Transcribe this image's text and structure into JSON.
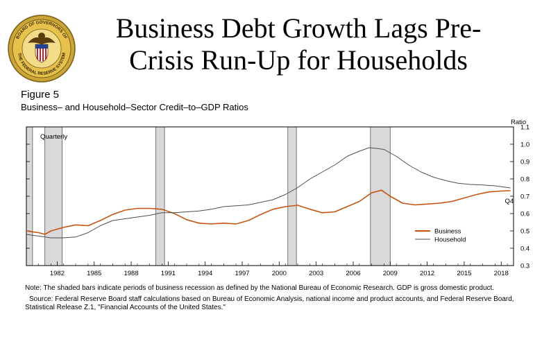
{
  "slide": {
    "title": "Business Debt Growth Lags Pre-Crisis Run-Up for Households",
    "logo": {
      "icon": "federal-reserve-seal",
      "text": "BOARD OF GOVERNORS OF THE FEDERAL RESERVE SYSTEM"
    }
  },
  "figure": {
    "label": "Figure 5",
    "subtitle": "Business– and Household–Sector Credit–to–GDP Ratios",
    "note": "Note: The shaded bars indicate periods of business recession as defined by the National Bureau of Economic Research. GDP is gross domestic product.",
    "source": "Source: Federal Reserve Board staff calculations based on Bureau of Economic Analysis, national income and product accounts, and Federal Reserve Board, Statistical Release Z.1, \"Financial Accounts of the United States.\""
  },
  "chart_data": {
    "type": "line",
    "frequency_label": "Quarterly",
    "ylabel": "Ratio",
    "ylim": [
      0.3,
      1.1
    ],
    "yticks": [
      "0.3",
      "0.4",
      "0.5",
      "0.6",
      "0.7",
      "0.8",
      "0.9",
      "1.0",
      "1.1"
    ],
    "xlim": [
      1980.0,
      2019.5
    ],
    "xticks": [
      "1982",
      "1985",
      "1988",
      "1991",
      "1994",
      "1997",
      "2000",
      "2003",
      "2006",
      "2009",
      "2012",
      "2015",
      "2018"
    ],
    "end_label": "Q4",
    "recessions": [
      [
        1980.0,
        1980.5
      ],
      [
        1981.5,
        1982.9
      ],
      [
        1990.5,
        1991.2
      ],
      [
        2001.2,
        2001.9
      ],
      [
        2007.9,
        2009.5
      ]
    ],
    "legend_position": "right",
    "series": [
      {
        "name": "Business",
        "color": "#c4540f",
        "points": [
          [
            1980.0,
            0.5
          ],
          [
            1980.5,
            0.495
          ],
          [
            1981.0,
            0.49
          ],
          [
            1981.5,
            0.48
          ],
          [
            1982.0,
            0.5
          ],
          [
            1983.0,
            0.52
          ],
          [
            1984.0,
            0.535
          ],
          [
            1985.0,
            0.53
          ],
          [
            1986.0,
            0.56
          ],
          [
            1987.0,
            0.595
          ],
          [
            1988.0,
            0.62
          ],
          [
            1989.0,
            0.63
          ],
          [
            1990.0,
            0.63
          ],
          [
            1991.0,
            0.625
          ],
          [
            1992.0,
            0.6
          ],
          [
            1993.0,
            0.565
          ],
          [
            1994.0,
            0.545
          ],
          [
            1995.0,
            0.54
          ],
          [
            1996.0,
            0.545
          ],
          [
            1997.0,
            0.54
          ],
          [
            1998.0,
            0.56
          ],
          [
            1999.0,
            0.595
          ],
          [
            2000.0,
            0.625
          ],
          [
            2001.0,
            0.64
          ],
          [
            2002.0,
            0.648
          ],
          [
            2003.0,
            0.625
          ],
          [
            2004.0,
            0.605
          ],
          [
            2005.0,
            0.61
          ],
          [
            2006.0,
            0.64
          ],
          [
            2007.0,
            0.67
          ],
          [
            2008.0,
            0.72
          ],
          [
            2008.8,
            0.735
          ],
          [
            2009.5,
            0.7
          ],
          [
            2010.5,
            0.66
          ],
          [
            2011.5,
            0.65
          ],
          [
            2012.5,
            0.655
          ],
          [
            2013.5,
            0.66
          ],
          [
            2014.5,
            0.67
          ],
          [
            2015.5,
            0.69
          ],
          [
            2016.5,
            0.71
          ],
          [
            2017.5,
            0.725
          ],
          [
            2018.5,
            0.73
          ],
          [
            2019.25,
            0.732
          ]
        ]
      },
      {
        "name": "Household",
        "color": "#4d4d4d",
        "points": [
          [
            1980.0,
            0.48
          ],
          [
            1980.5,
            0.475
          ],
          [
            1981.0,
            0.47
          ],
          [
            1981.5,
            0.465
          ],
          [
            1982.0,
            0.46
          ],
          [
            1983.0,
            0.46
          ],
          [
            1984.0,
            0.465
          ],
          [
            1985.0,
            0.49
          ],
          [
            1986.0,
            0.53
          ],
          [
            1987.0,
            0.56
          ],
          [
            1988.0,
            0.57
          ],
          [
            1989.0,
            0.58
          ],
          [
            1990.0,
            0.59
          ],
          [
            1991.0,
            0.605
          ],
          [
            1992.0,
            0.605
          ],
          [
            1993.0,
            0.61
          ],
          [
            1994.0,
            0.615
          ],
          [
            1995.0,
            0.625
          ],
          [
            1996.0,
            0.64
          ],
          [
            1997.0,
            0.645
          ],
          [
            1998.0,
            0.65
          ],
          [
            1999.0,
            0.665
          ],
          [
            2000.0,
            0.68
          ],
          [
            2001.0,
            0.71
          ],
          [
            2002.0,
            0.75
          ],
          [
            2003.0,
            0.8
          ],
          [
            2004.0,
            0.84
          ],
          [
            2005.0,
            0.88
          ],
          [
            2006.0,
            0.93
          ],
          [
            2007.0,
            0.96
          ],
          [
            2007.8,
            0.98
          ],
          [
            2008.5,
            0.975
          ],
          [
            2009.0,
            0.97
          ],
          [
            2010.0,
            0.93
          ],
          [
            2011.0,
            0.88
          ],
          [
            2012.0,
            0.84
          ],
          [
            2013.0,
            0.81
          ],
          [
            2014.0,
            0.79
          ],
          [
            2015.0,
            0.775
          ],
          [
            2016.0,
            0.768
          ],
          [
            2017.0,
            0.765
          ],
          [
            2018.0,
            0.76
          ],
          [
            2019.25,
            0.748
          ]
        ]
      }
    ]
  }
}
